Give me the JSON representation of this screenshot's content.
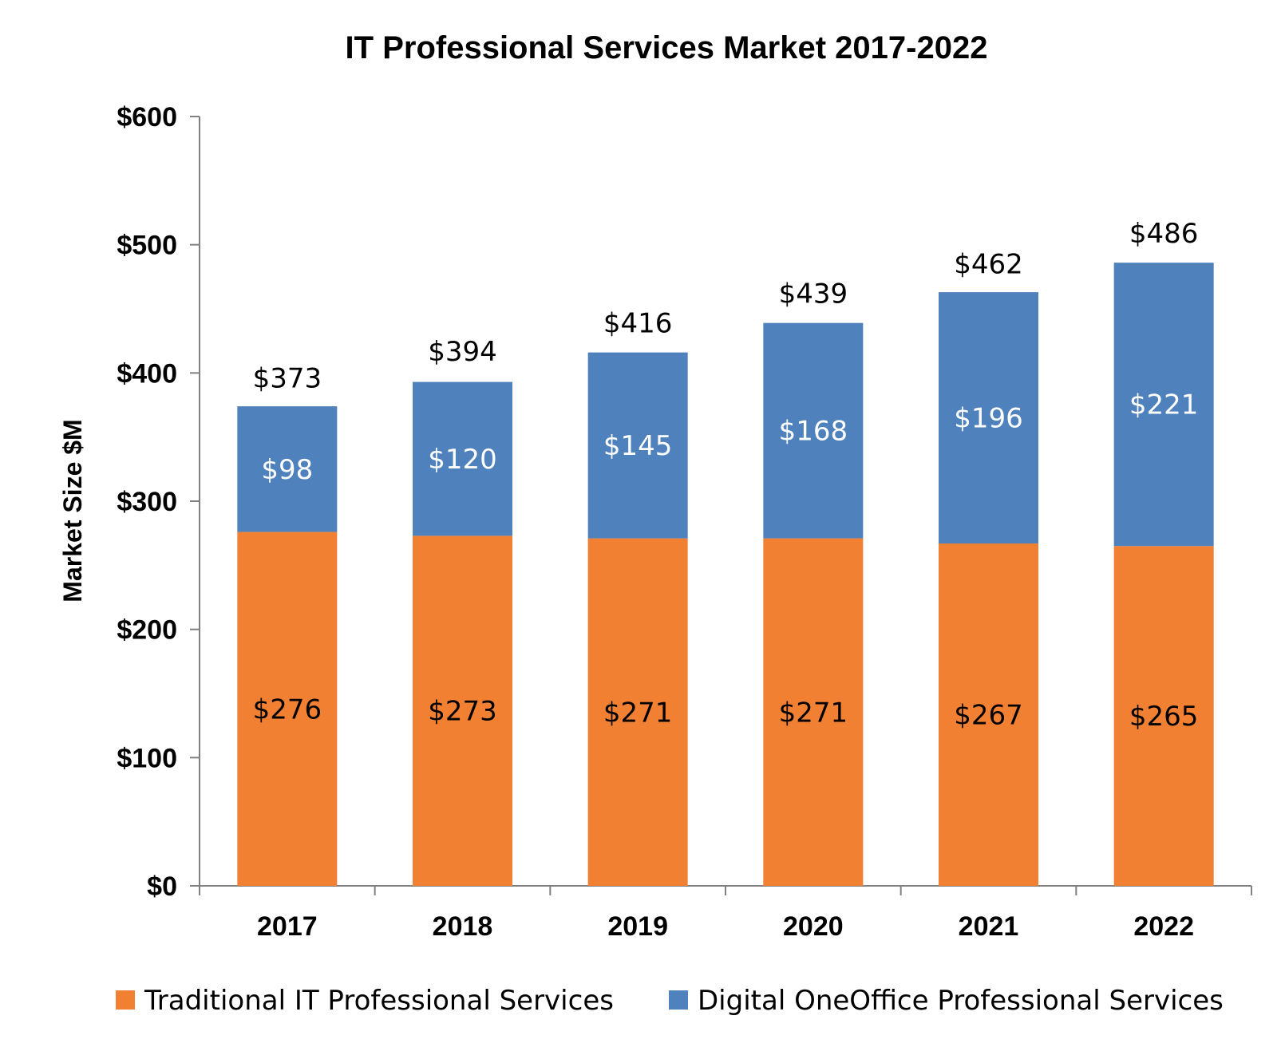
{
  "chart_data": {
    "type": "bar",
    "stacked": true,
    "title": "IT Professional Services Market 2017-2022",
    "xlabel": "",
    "ylabel": "Market Size $M",
    "ylim": [
      0,
      600
    ],
    "yticks": [
      0,
      100,
      200,
      300,
      400,
      500,
      600
    ],
    "ytick_labels": [
      "$0",
      "$100",
      "$200",
      "$300",
      "$400",
      "$500",
      "$600"
    ],
    "categories": [
      "2017",
      "2018",
      "2019",
      "2020",
      "2021",
      "2022"
    ],
    "series": [
      {
        "name": "Traditional IT Professional Services",
        "color": "#f28033",
        "label_color": "#000000",
        "values": [
          276,
          273,
          271,
          271,
          267,
          265
        ],
        "labels": [
          "$276",
          "$273",
          "$271",
          "$271",
          "$267",
          "$265"
        ]
      },
      {
        "name": "Digital OneOffice Professional Services",
        "color": "#4f81bd",
        "label_color": "#ffffff",
        "values": [
          98,
          120,
          145,
          168,
          196,
          221
        ],
        "labels": [
          "$98",
          "$120",
          "$145",
          "$168",
          "$196",
          "$221"
        ]
      }
    ],
    "totals": [
      373,
      394,
      416,
      439,
      462,
      486
    ],
    "total_labels": [
      "$373",
      "$394",
      "$416",
      "$439",
      "$462",
      "$486"
    ],
    "grid": false,
    "legend": "bottom"
  }
}
